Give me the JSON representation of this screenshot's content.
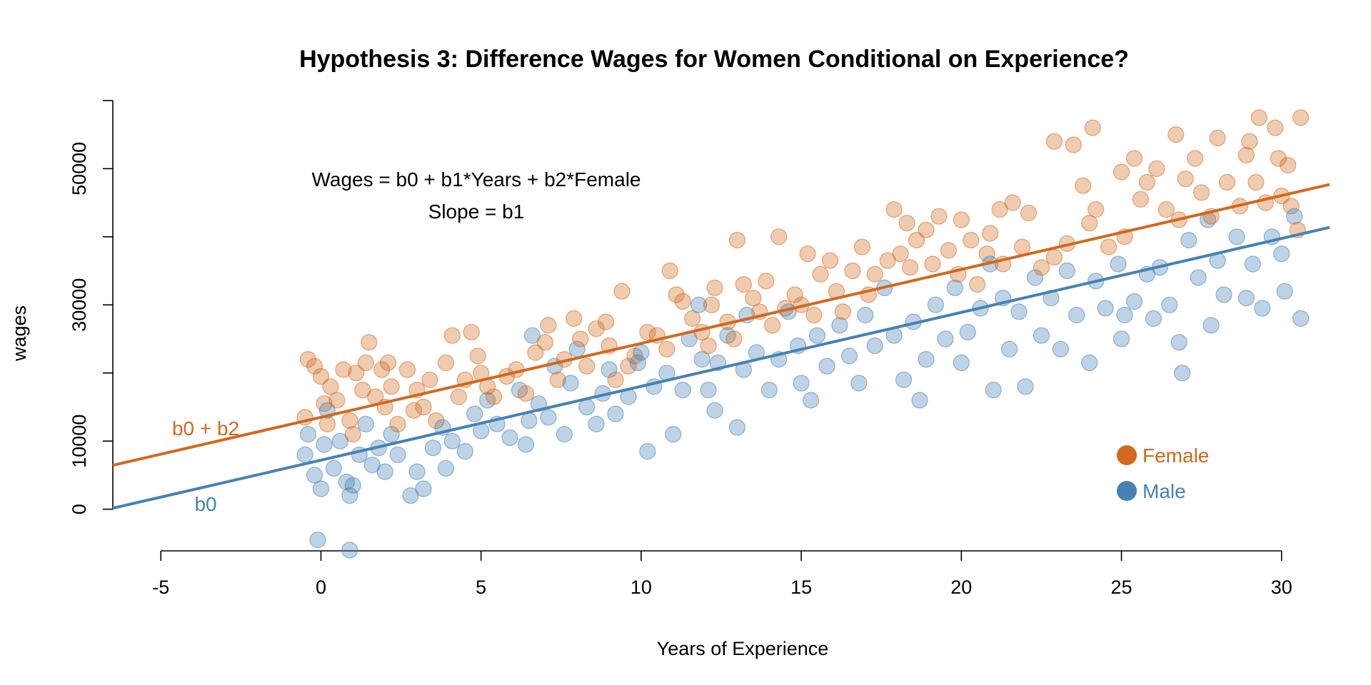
{
  "chart_data": {
    "type": "scatter",
    "title": "Hypothesis 3: Difference Wages for Women Conditional on Experience?",
    "xlabel": "Years of Experience",
    "ylabel": "wages",
    "xlim": [
      -6.5,
      31.5
    ],
    "ylim": [
      -8000,
      58000
    ],
    "x_ticks": [
      "-5",
      "0",
      "5",
      "10",
      "15",
      "20",
      "25",
      "30"
    ],
    "y_ticks": [
      "0",
      "10000",
      "30000",
      "50000"
    ],
    "y_tick_values": [
      0,
      10000,
      20000,
      30000,
      40000,
      50000,
      60000
    ],
    "annotation_lines": [
      "Wages = b0 + b1*Years + b2*Female",
      "Slope = b1"
    ],
    "grid": false,
    "legend_placement": "bottom-right",
    "colors": {
      "female": "#D2691E",
      "male": "#4682B4"
    },
    "regression_lines": [
      {
        "label": "b0 + b2",
        "color": "#D2691E",
        "intercept": 13500,
        "slope": 1085
      },
      {
        "label": "b0",
        "color": "#4682B4",
        "intercept": 7200,
        "slope": 1085
      }
    ],
    "legend": [
      {
        "name": "Female",
        "color": "#D2691E"
      },
      {
        "name": "Male",
        "color": "#4682B4"
      }
    ],
    "series": [
      {
        "name": "Female",
        "color": "#D2691E",
        "points": [
          [
            -0.5,
            13500
          ],
          [
            -0.4,
            22000
          ],
          [
            -0.2,
            21000
          ],
          [
            0,
            19500
          ],
          [
            0.1,
            15500
          ],
          [
            0.2,
            12500
          ],
          [
            0.3,
            18000
          ],
          [
            0.5,
            16000
          ],
          [
            0.7,
            20500
          ],
          [
            0.9,
            13000
          ],
          [
            1.0,
            11000
          ],
          [
            1.1,
            20000
          ],
          [
            1.3,
            17500
          ],
          [
            1.4,
            21500
          ],
          [
            1.5,
            24500
          ],
          [
            1.7,
            16500
          ],
          [
            1.9,
            20500
          ],
          [
            2.0,
            15000
          ],
          [
            2.1,
            21500
          ],
          [
            2.2,
            18000
          ],
          [
            2.4,
            12500
          ],
          [
            2.7,
            20500
          ],
          [
            2.9,
            14500
          ],
          [
            3.0,
            17500
          ],
          [
            3.2,
            15000
          ],
          [
            3.4,
            19000
          ],
          [
            3.6,
            13000
          ],
          [
            3.9,
            21500
          ],
          [
            4.1,
            25500
          ],
          [
            4.3,
            16500
          ],
          [
            4.5,
            19000
          ],
          [
            4.7,
            26000
          ],
          [
            4.9,
            22500
          ],
          [
            5.0,
            20000
          ],
          [
            5.2,
            18000
          ],
          [
            5.4,
            16500
          ],
          [
            5.8,
            19500
          ],
          [
            6.1,
            20500
          ],
          [
            6.4,
            17000
          ],
          [
            6.7,
            23000
          ],
          [
            7.0,
            24500
          ],
          [
            7.1,
            27000
          ],
          [
            7.4,
            19000
          ],
          [
            7.6,
            22000
          ],
          [
            7.9,
            28000
          ],
          [
            8.1,
            25000
          ],
          [
            8.3,
            21000
          ],
          [
            8.6,
            26500
          ],
          [
            8.9,
            27500
          ],
          [
            9.0,
            24000
          ],
          [
            9.2,
            19000
          ],
          [
            9.4,
            32000
          ],
          [
            9.6,
            21000
          ],
          [
            9.8,
            22500
          ],
          [
            10.2,
            26000
          ],
          [
            10.5,
            25500
          ],
          [
            10.8,
            23500
          ],
          [
            10.9,
            35000
          ],
          [
            11.1,
            31500
          ],
          [
            11.3,
            30500
          ],
          [
            11.6,
            28000
          ],
          [
            11.9,
            26000
          ],
          [
            12.1,
            24000
          ],
          [
            12.2,
            30000
          ],
          [
            12.3,
            32500
          ],
          [
            12.7,
            27500
          ],
          [
            12.9,
            25000
          ],
          [
            13.0,
            39500
          ],
          [
            13.2,
            33000
          ],
          [
            13.5,
            31000
          ],
          [
            13.7,
            29000
          ],
          [
            13.9,
            33500
          ],
          [
            14.1,
            27000
          ],
          [
            14.3,
            40000
          ],
          [
            14.5,
            29500
          ],
          [
            14.8,
            31500
          ],
          [
            15.0,
            30000
          ],
          [
            15.2,
            37500
          ],
          [
            15.4,
            28500
          ],
          [
            15.6,
            34500
          ],
          [
            15.9,
            36500
          ],
          [
            16.1,
            32000
          ],
          [
            16.3,
            29000
          ],
          [
            16.6,
            35000
          ],
          [
            16.9,
            38500
          ],
          [
            17.1,
            31500
          ],
          [
            17.3,
            34500
          ],
          [
            17.7,
            36500
          ],
          [
            17.9,
            44000
          ],
          [
            18.1,
            37500
          ],
          [
            18.3,
            42000
          ],
          [
            18.4,
            35500
          ],
          [
            18.6,
            39500
          ],
          [
            18.9,
            41000
          ],
          [
            19.1,
            36000
          ],
          [
            19.3,
            43000
          ],
          [
            19.6,
            38000
          ],
          [
            19.9,
            34500
          ],
          [
            20.0,
            42500
          ],
          [
            20.3,
            39500
          ],
          [
            20.5,
            33000
          ],
          [
            20.8,
            37500
          ],
          [
            20.9,
            40500
          ],
          [
            21.2,
            44000
          ],
          [
            21.3,
            36000
          ],
          [
            21.6,
            45000
          ],
          [
            21.9,
            38500
          ],
          [
            22.1,
            43500
          ],
          [
            22.5,
            35500
          ],
          [
            22.9,
            37000
          ],
          [
            22.9,
            54000
          ],
          [
            23.3,
            39000
          ],
          [
            23.5,
            53500
          ],
          [
            23.8,
            47500
          ],
          [
            24.0,
            42000
          ],
          [
            24.1,
            56000
          ],
          [
            24.2,
            44000
          ],
          [
            24.6,
            38500
          ],
          [
            25.0,
            49500
          ],
          [
            25.1,
            40000
          ],
          [
            25.4,
            51500
          ],
          [
            25.6,
            45500
          ],
          [
            25.8,
            48000
          ],
          [
            26.1,
            50000
          ],
          [
            26.4,
            44000
          ],
          [
            26.7,
            55000
          ],
          [
            26.8,
            42500
          ],
          [
            27.0,
            48500
          ],
          [
            27.3,
            51500
          ],
          [
            27.5,
            46500
          ],
          [
            27.8,
            43000
          ],
          [
            28.0,
            54500
          ],
          [
            28.3,
            48000
          ],
          [
            28.7,
            44500
          ],
          [
            28.9,
            52000
          ],
          [
            29.0,
            54000
          ],
          [
            29.2,
            48000
          ],
          [
            29.3,
            57500
          ],
          [
            29.5,
            45000
          ],
          [
            29.8,
            56000
          ],
          [
            29.9,
            51500
          ],
          [
            30.0,
            46000
          ],
          [
            30.2,
            50500
          ],
          [
            30.3,
            44500
          ],
          [
            30.5,
            41000
          ],
          [
            30.6,
            57500
          ]
        ]
      },
      {
        "name": "Male",
        "color": "#4682B4",
        "points": [
          [
            -0.5,
            8000
          ],
          [
            -0.4,
            11000
          ],
          [
            -0.2,
            5000
          ],
          [
            -0.1,
            -4500
          ],
          [
            0,
            3000
          ],
          [
            0.1,
            9500
          ],
          [
            0.2,
            14500
          ],
          [
            0.4,
            6000
          ],
          [
            0.6,
            10000
          ],
          [
            0.8,
            4000
          ],
          [
            0.9,
            2000
          ],
          [
            0.9,
            -6000
          ],
          [
            1.0,
            3500
          ],
          [
            1.2,
            8000
          ],
          [
            1.4,
            12500
          ],
          [
            1.6,
            6500
          ],
          [
            1.8,
            9000
          ],
          [
            2.0,
            5500
          ],
          [
            2.2,
            11000
          ],
          [
            2.4,
            8000
          ],
          [
            2.8,
            2000
          ],
          [
            3.0,
            5500
          ],
          [
            3.2,
            3000
          ],
          [
            3.5,
            9000
          ],
          [
            3.8,
            12000
          ],
          [
            3.9,
            6000
          ],
          [
            4.1,
            10000
          ],
          [
            4.5,
            8500
          ],
          [
            4.8,
            14000
          ],
          [
            5.0,
            11500
          ],
          [
            5.2,
            16000
          ],
          [
            5.5,
            12500
          ],
          [
            5.9,
            10500
          ],
          [
            6.2,
            17500
          ],
          [
            6.4,
            9500
          ],
          [
            6.5,
            13000
          ],
          [
            6.6,
            25500
          ],
          [
            6.8,
            15500
          ],
          [
            7.1,
            13500
          ],
          [
            7.3,
            21000
          ],
          [
            7.6,
            11000
          ],
          [
            7.8,
            18500
          ],
          [
            8.0,
            23500
          ],
          [
            8.3,
            15000
          ],
          [
            8.6,
            12500
          ],
          [
            8.8,
            17000
          ],
          [
            9.0,
            20500
          ],
          [
            9.2,
            14000
          ],
          [
            9.6,
            16500
          ],
          [
            9.9,
            21500
          ],
          [
            10.0,
            23000
          ],
          [
            10.2,
            8500
          ],
          [
            10.4,
            18000
          ],
          [
            10.8,
            20000
          ],
          [
            11.0,
            11000
          ],
          [
            11.3,
            17500
          ],
          [
            11.5,
            25000
          ],
          [
            11.8,
            30000
          ],
          [
            11.9,
            22000
          ],
          [
            12.1,
            17500
          ],
          [
            12.3,
            14500
          ],
          [
            12.4,
            21500
          ],
          [
            12.7,
            25500
          ],
          [
            13.0,
            12000
          ],
          [
            13.2,
            20500
          ],
          [
            13.3,
            28500
          ],
          [
            13.6,
            23000
          ],
          [
            14.0,
            17500
          ],
          [
            14.3,
            22000
          ],
          [
            14.6,
            29000
          ],
          [
            14.9,
            24000
          ],
          [
            15.0,
            18500
          ],
          [
            15.3,
            16000
          ],
          [
            15.5,
            25500
          ],
          [
            15.8,
            21000
          ],
          [
            16.2,
            27000
          ],
          [
            16.5,
            22500
          ],
          [
            16.8,
            18500
          ],
          [
            17.0,
            28500
          ],
          [
            17.3,
            24000
          ],
          [
            17.6,
            32500
          ],
          [
            17.9,
            25500
          ],
          [
            18.2,
            19000
          ],
          [
            18.5,
            27500
          ],
          [
            18.7,
            16000
          ],
          [
            18.9,
            22000
          ],
          [
            19.2,
            30000
          ],
          [
            19.5,
            25000
          ],
          [
            19.8,
            32500
          ],
          [
            20.0,
            21500
          ],
          [
            20.2,
            26000
          ],
          [
            20.6,
            29500
          ],
          [
            20.9,
            36000
          ],
          [
            21.0,
            17500
          ],
          [
            21.3,
            31000
          ],
          [
            21.5,
            23500
          ],
          [
            21.8,
            29000
          ],
          [
            22.0,
            18000
          ],
          [
            22.3,
            34000
          ],
          [
            22.5,
            25500
          ],
          [
            22.8,
            31000
          ],
          [
            23.1,
            23500
          ],
          [
            23.3,
            35000
          ],
          [
            23.6,
            28500
          ],
          [
            24.0,
            21500
          ],
          [
            24.2,
            33500
          ],
          [
            24.5,
            29500
          ],
          [
            24.9,
            36000
          ],
          [
            25.0,
            25000
          ],
          [
            25.1,
            28500
          ],
          [
            25.4,
            30500
          ],
          [
            25.8,
            34500
          ],
          [
            26.0,
            28000
          ],
          [
            26.2,
            35500
          ],
          [
            26.5,
            30000
          ],
          [
            26.8,
            24500
          ],
          [
            26.9,
            20000
          ],
          [
            27.1,
            39500
          ],
          [
            27.4,
            34000
          ],
          [
            27.7,
            42500
          ],
          [
            27.8,
            27000
          ],
          [
            28.0,
            36500
          ],
          [
            28.2,
            31500
          ],
          [
            28.6,
            40000
          ],
          [
            28.9,
            31000
          ],
          [
            29.1,
            36000
          ],
          [
            29.4,
            29500
          ],
          [
            29.7,
            40000
          ],
          [
            30.0,
            37500
          ],
          [
            30.1,
            32000
          ],
          [
            30.4,
            43000
          ],
          [
            30.6,
            28000
          ]
        ]
      }
    ]
  }
}
